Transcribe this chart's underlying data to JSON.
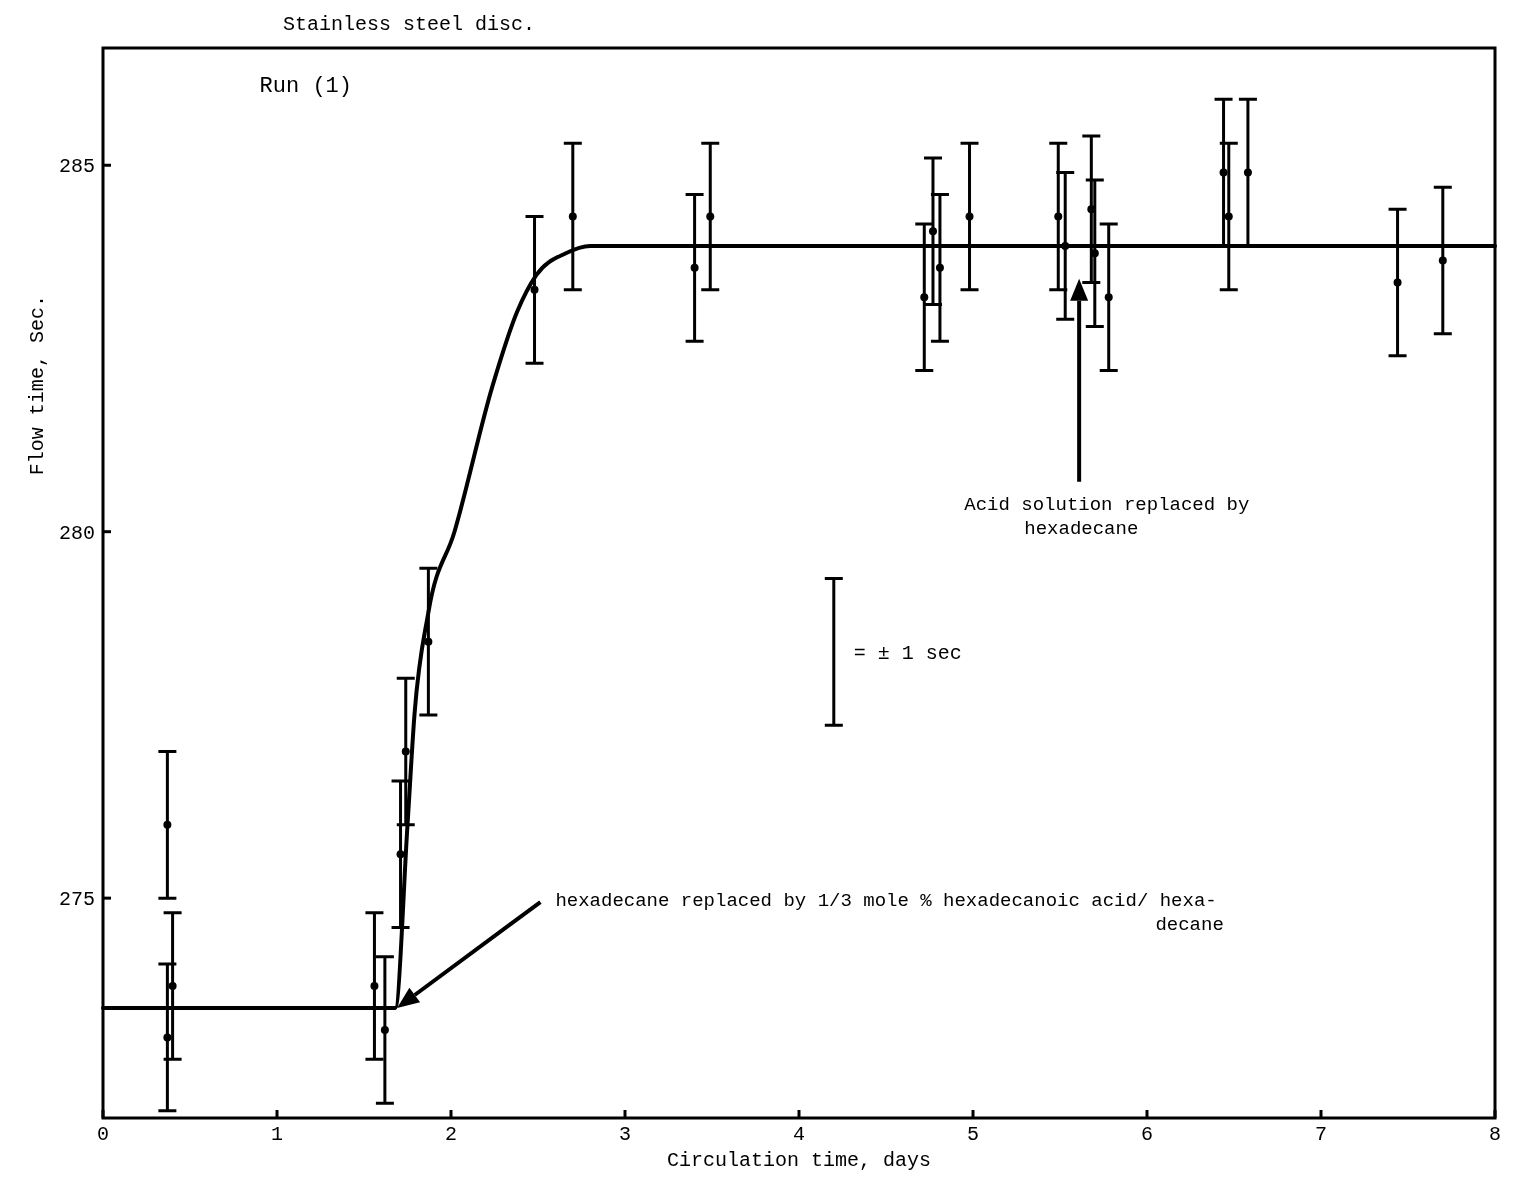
{
  "chart_data": {
    "type": "scatter",
    "title": "Stainless steel disc.",
    "xlabel": "Circulation time, days",
    "ylabel": "Flow time, Sec.",
    "xlim": [
      0,
      8
    ],
    "xticks": [
      0,
      1,
      2,
      3,
      4,
      5,
      6,
      7,
      8
    ],
    "ylim": [
      272,
      286.6
    ],
    "yticks": [
      275,
      280,
      285
    ],
    "grid": false,
    "series": [
      {
        "color": "#000000",
        "x": [
          0.37,
          0.4,
          0.37,
          1.56,
          1.62,
          1.71,
          1.74,
          1.87,
          2.48,
          2.7,
          3.4,
          3.49,
          4.72,
          4.77,
          4.81,
          4.98,
          5.49,
          5.53,
          5.68,
          5.7,
          5.78,
          6.44,
          6.47,
          6.58,
          7.44,
          7.7
        ],
        "values": [
          276.0,
          273.8,
          273.1,
          273.8,
          273.2,
          275.6,
          277.0,
          278.5,
          283.3,
          284.3,
          283.6,
          284.3,
          283.2,
          284.1,
          283.6,
          284.3,
          284.3,
          283.9,
          284.4,
          283.8,
          283.2,
          284.9,
          284.3,
          284.9,
          283.4,
          283.7
        ],
        "errors": [
          1,
          1,
          1,
          1,
          1,
          1,
          1,
          1,
          1,
          1,
          1,
          1,
          1,
          1,
          1,
          1,
          1,
          1,
          1,
          1,
          1,
          1,
          1,
          1,
          1,
          1
        ]
      },
      {
        "type": "line",
        "color": "#000000",
        "line_style": "solid",
        "x": [
          0,
          1.68,
          1.75,
          1.79,
          1.87,
          2.02,
          2.24,
          2.38,
          2.49,
          2.66,
          2.8,
          8
        ],
        "values": [
          273.5,
          273.5,
          276.0,
          277.5,
          278.9,
          280.0,
          282.0,
          283.0,
          283.5,
          283.8,
          283.9,
          283.9
        ]
      }
    ],
    "annotations": [
      "Run (1)",
      "= ± 1 sec",
      "hexadecane replaced by 1/3 mole % hexadecanoic acid/ hexa-\ndecane",
      "Acid solution replaced by\nhexadecane"
    ]
  }
}
